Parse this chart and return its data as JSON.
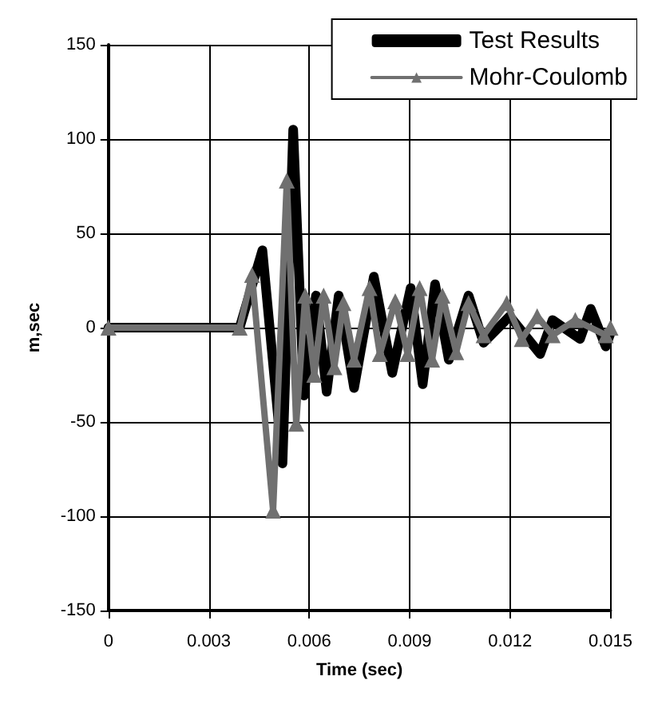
{
  "chart_data": {
    "type": "line",
    "xlabel": "Time (sec)",
    "ylabel": "m,sec",
    "xlim": [
      0,
      0.015
    ],
    "xticks": [
      0,
      0.003,
      0.006,
      0.009,
      0.012,
      0.015
    ],
    "ylim": [
      -150,
      150
    ],
    "yticks": [
      -150,
      -100,
      -50,
      0,
      50,
      100,
      150
    ],
    "grid": true,
    "legend": "top right",
    "line_style": "solid",
    "series": [
      {
        "name": "Test Results",
        "color": "#000000",
        "marker": "none",
        "x": [
          0,
          0.00392,
          0.0046,
          0.0052,
          0.00552,
          0.00584,
          0.0062,
          0.00652,
          0.00688,
          0.00734,
          0.00793,
          0.00848,
          0.00903,
          0.00939,
          0.00976,
          0.01017,
          0.01076,
          0.01121,
          0.01199,
          0.0129,
          0.01327,
          0.01409,
          0.01441,
          0.01486,
          0.015
        ],
        "values": [
          0,
          0,
          41,
          -72,
          105,
          -36,
          17,
          -34,
          17,
          -32,
          27,
          -24,
          21,
          -30,
          23,
          -17,
          17,
          -8,
          6,
          -14,
          4,
          -6,
          10,
          -10,
          -3
        ]
      },
      {
        "name": "Mohr-Coulomb",
        "color": "#707070",
        "marker": "triangle",
        "x": [
          0,
          0.00392,
          0.00429,
          0.00492,
          0.00533,
          0.00561,
          0.00588,
          0.00615,
          0.00643,
          0.00675,
          0.00702,
          0.00734,
          0.0078,
          0.00811,
          0.00857,
          0.00894,
          0.0093,
          0.00967,
          0.00998,
          0.01039,
          0.01076,
          0.01121,
          0.0119,
          0.01235,
          0.01281,
          0.01327,
          0.01395,
          0.01486,
          0.015
        ],
        "values": [
          0,
          0,
          28,
          -97,
          78,
          -51,
          17,
          -25,
          17,
          -21,
          13,
          -17,
          21,
          -14,
          14,
          -14,
          21,
          -17,
          17,
          -13,
          13,
          -4,
          13,
          -6,
          6,
          -4,
          4,
          -4,
          0
        ]
      }
    ]
  }
}
